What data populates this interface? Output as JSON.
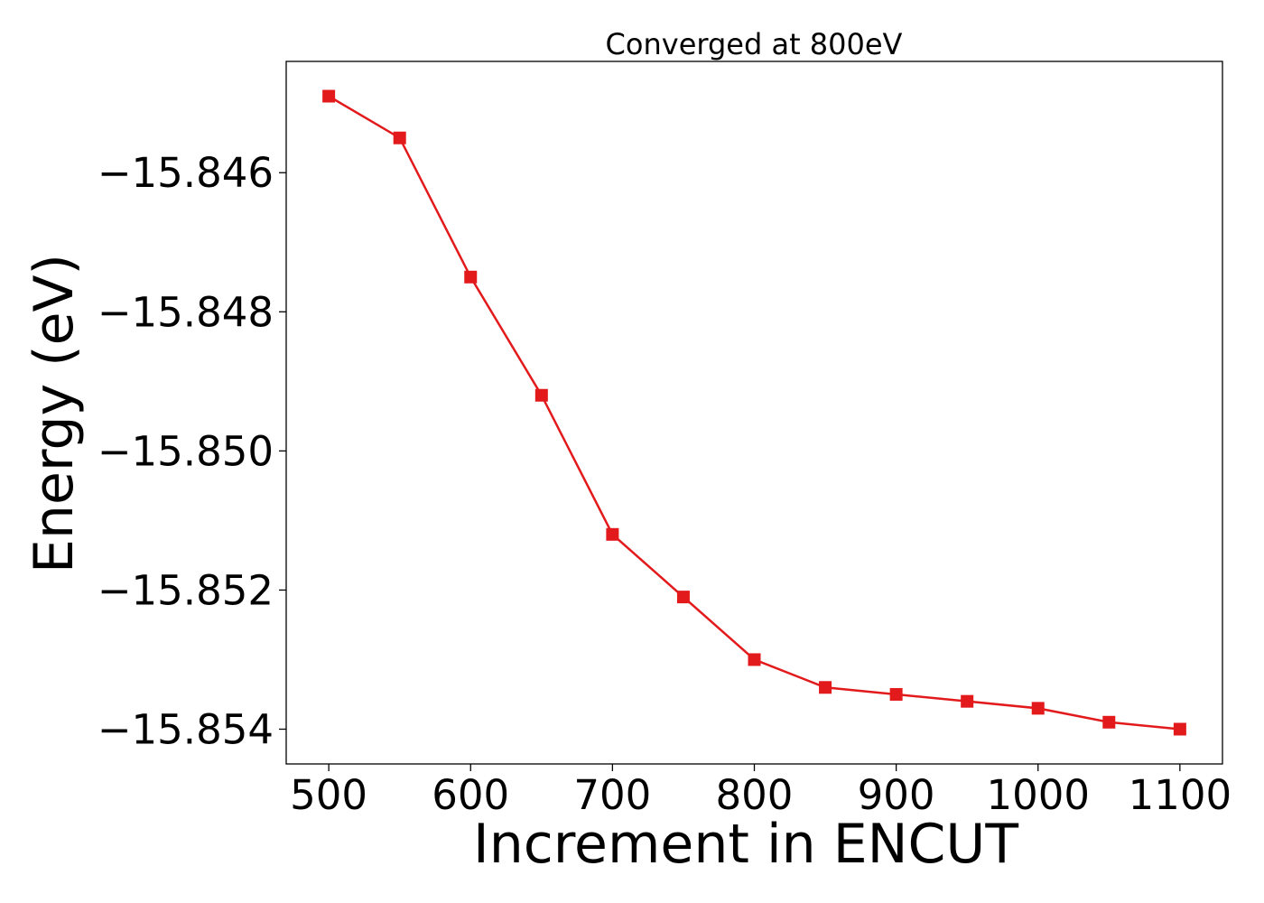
{
  "chart_data": {
    "type": "line",
    "title": "Converged at 800eV",
    "xlabel": "Increment in ENCUT",
    "ylabel": "Energy (eV)",
    "xlim": [
      470,
      1130
    ],
    "ylim": [
      -15.8545,
      -15.8444
    ],
    "xticks": [
      500,
      600,
      700,
      800,
      900,
      1000,
      1100
    ],
    "xtick_labels": [
      "500",
      "600",
      "700",
      "800",
      "900",
      "1000",
      "1100"
    ],
    "yticks": [
      -15.846,
      -15.848,
      -15.85,
      -15.852,
      -15.854
    ],
    "ytick_labels": [
      "−15.846",
      "−15.848",
      "−15.850",
      "−15.852",
      "−15.854"
    ],
    "grid": false,
    "series": [
      {
        "color": "#e31a1c",
        "marker": "square",
        "x": [
          500,
          550,
          600,
          650,
          700,
          750,
          800,
          850,
          900,
          950,
          1000,
          1050,
          1100
        ],
        "y": [
          -15.8449,
          -15.8455,
          -15.8475,
          -15.8492,
          -15.8512,
          -15.8521,
          -15.853,
          -15.8534,
          -15.8535,
          -15.8536,
          -15.8537,
          -15.8539,
          -15.854
        ]
      }
    ]
  }
}
